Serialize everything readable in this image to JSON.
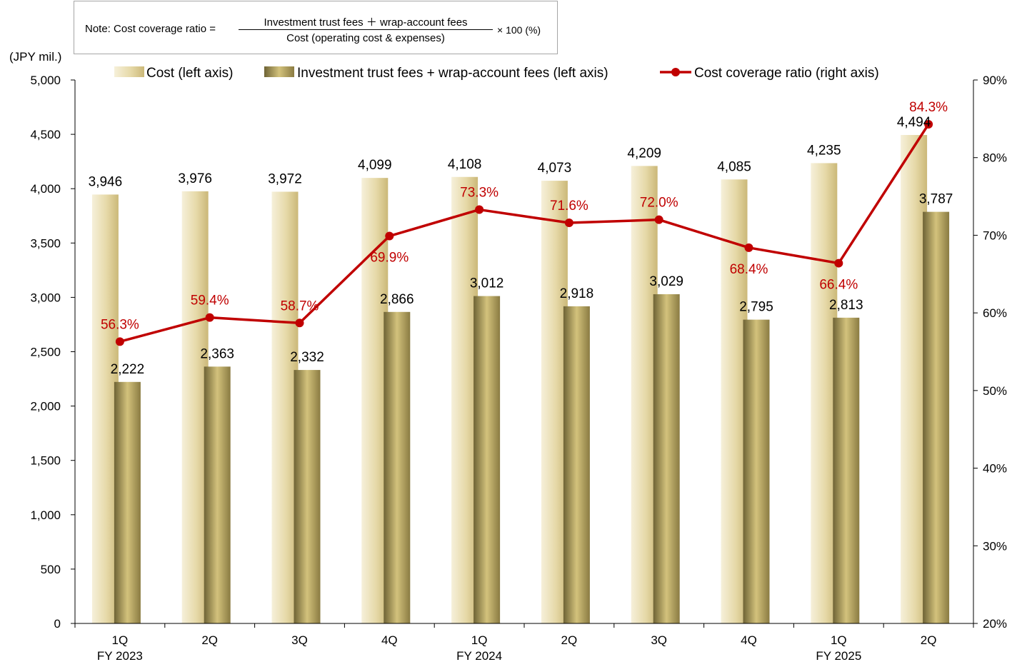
{
  "note": {
    "prefix": "Note: Cost coverage ratio =",
    "numerator": "Investment trust fees ＋ wrap-account fees",
    "denominator": "Cost (operating cost & expenses)",
    "suffix": "× 100 (%)"
  },
  "chart_data": {
    "type": "bar",
    "unit_label": "(JPY mil.)",
    "categories": [
      "1Q",
      "2Q",
      "3Q",
      "4Q",
      "1Q",
      "2Q",
      "3Q",
      "4Q",
      "1Q",
      "2Q"
    ],
    "fiscal_years": [
      "FY 2023",
      "",
      "",
      "",
      "FY 2024",
      "",
      "",
      "",
      "FY 2025",
      ""
    ],
    "left_axis": {
      "ylim": [
        0,
        5000
      ],
      "ticks": [
        0,
        500,
        1000,
        1500,
        2000,
        2500,
        3000,
        3500,
        4000,
        4500,
        5000
      ],
      "tick_labels": [
        "0",
        "500",
        "1,000",
        "1,500",
        "2,000",
        "2,500",
        "3,000",
        "3,500",
        "4,000",
        "4,500",
        "5,000"
      ]
    },
    "right_axis": {
      "ylim": [
        20,
        90
      ],
      "ticks": [
        20,
        30,
        40,
        50,
        60,
        70,
        80,
        90
      ],
      "tick_labels": [
        "20%",
        "30%",
        "40%",
        "50%",
        "60%",
        "70%",
        "80%",
        "90%"
      ]
    },
    "series": [
      {
        "name": "Cost (left axis)",
        "type": "bar",
        "axis": "left",
        "color": "#d9c98f",
        "values": [
          3946,
          3976,
          3972,
          4099,
          4108,
          4073,
          4209,
          4085,
          4235,
          4494
        ],
        "labels": [
          "3,946",
          "3,976",
          "3,972",
          "4,099",
          "4,108",
          "4,073",
          "4,209",
          "4,085",
          "4,235",
          "4,494"
        ]
      },
      {
        "name": "Investment trust fees + wrap-account fees (left axis)",
        "type": "bar",
        "axis": "left",
        "color": "#9a8a4a",
        "values": [
          2222,
          2363,
          2332,
          2866,
          3012,
          2918,
          3029,
          2795,
          2813,
          3787
        ],
        "labels": [
          "2,222",
          "2,363",
          "2,332",
          "2,866",
          "3,012",
          "2,918",
          "3,029",
          "2,795",
          "2,813",
          "3,787"
        ]
      },
      {
        "name": "Cost coverage ratio (right axis)",
        "type": "line",
        "axis": "right",
        "color": "#c00000",
        "values": [
          56.3,
          59.4,
          58.7,
          69.9,
          73.3,
          71.6,
          72.0,
          68.4,
          66.4,
          84.3
        ],
        "labels": [
          "56.3%",
          "59.4%",
          "58.7%",
          "69.9%",
          "73.3%",
          "71.6%",
          "72.0%",
          "68.4%",
          "66.4%",
          "84.3%"
        ]
      }
    ],
    "grid": false,
    "legend": "top"
  }
}
